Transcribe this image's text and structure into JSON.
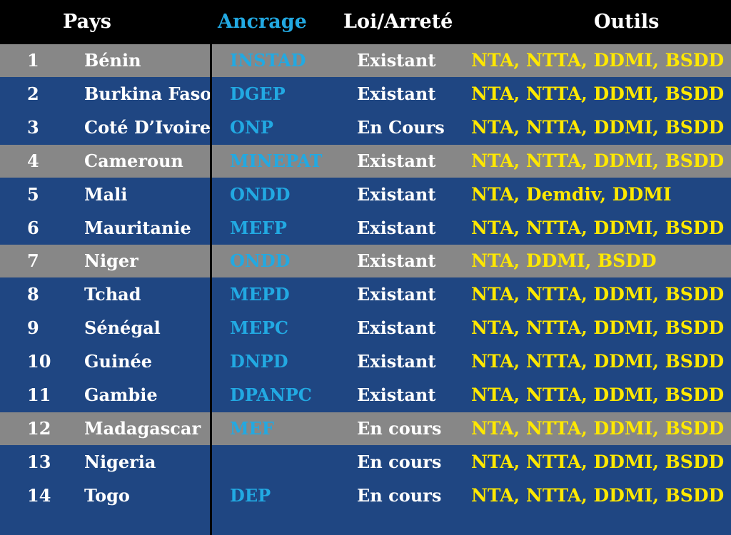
{
  "header": {
    "pays": "Pays",
    "ancrage": "Ancrage",
    "loi": "Loi/Arreté",
    "outils": "Outils"
  },
  "colors": {
    "header_bg": "#000000",
    "row_blue": "#1f4682",
    "row_gray": "#878787",
    "ancrage_text": "#22a9e2",
    "outils_text": "#ffe800",
    "text": "#ffffff"
  },
  "rows": [
    {
      "num": "1",
      "pays": "Bénin",
      "ancrage": "INSTAD",
      "loi": "Existant",
      "outils": "NTA, NTTA, DDMI, BSDD",
      "shade": "gray"
    },
    {
      "num": "2",
      "pays": "Burkina Faso",
      "ancrage": "DGEP",
      "loi": "Existant",
      "outils": "NTA, NTTA, DDMI, BSDD",
      "shade": "blue"
    },
    {
      "num": "3",
      "pays": "Coté D’Ivoire",
      "ancrage": "ONP",
      "loi": "En Cours",
      "outils": "NTA, NTTA, DDMI, BSDD",
      "shade": "blue"
    },
    {
      "num": "4",
      "pays": "Cameroun",
      "ancrage": "MINEPAT",
      "loi": "Existant",
      "outils": "NTA, NTTA, DDMI, BSDD",
      "shade": "gray"
    },
    {
      "num": "5",
      "pays": "Mali",
      "ancrage": "ONDD",
      "loi": "Existant",
      "outils": "NTA, Demdiv, DDMI",
      "shade": "blue"
    },
    {
      "num": "6",
      "pays": "Mauritanie",
      "ancrage": "MEFP",
      "loi": "Existant",
      "outils": "NTA, NTTA, DDMI, BSDD",
      "shade": "blue"
    },
    {
      "num": "7",
      "pays": "Niger",
      "ancrage": "ONDD",
      "loi": "Existant",
      "outils": "NTA, DDMI, BSDD",
      "shade": "gray"
    },
    {
      "num": "8",
      "pays": "Tchad",
      "ancrage": "MEPD",
      "loi": "Existant",
      "outils": "NTA, NTTA, DDMI, BSDD",
      "shade": "blue"
    },
    {
      "num": "9",
      "pays": "Sénégal",
      "ancrage": "MEPC",
      "loi": "Existant",
      "outils": "NTA, NTTA, DDMI, BSDD",
      "shade": "blue"
    },
    {
      "num": "10",
      "pays": "Guinée",
      "ancrage": "DNPD",
      "loi": "Existant",
      "outils": "NTA, NTTA, DDMI, BSDD",
      "shade": "blue"
    },
    {
      "num": "11",
      "pays": "Gambie",
      "ancrage": "DPANPC",
      "loi": "Existant",
      "outils": "NTA, NTTA, DDMI, BSDD",
      "shade": "blue"
    },
    {
      "num": "12",
      "pays": "Madagascar",
      "ancrage": "MEF",
      "loi": "En cours",
      "outils": "NTA, NTTA, DDMI, BSDD",
      "shade": "gray"
    },
    {
      "num": "13",
      "pays": "Nigeria",
      "ancrage": "",
      "loi": "En cours",
      "outils": "NTA, NTTA, DDMI, BSDD",
      "shade": "blue"
    },
    {
      "num": "14",
      "pays": "Togo",
      "ancrage": "DEP",
      "loi": "En cours",
      "outils": "NTA, NTTA, DDMI, BSDD",
      "shade": "blue"
    }
  ]
}
